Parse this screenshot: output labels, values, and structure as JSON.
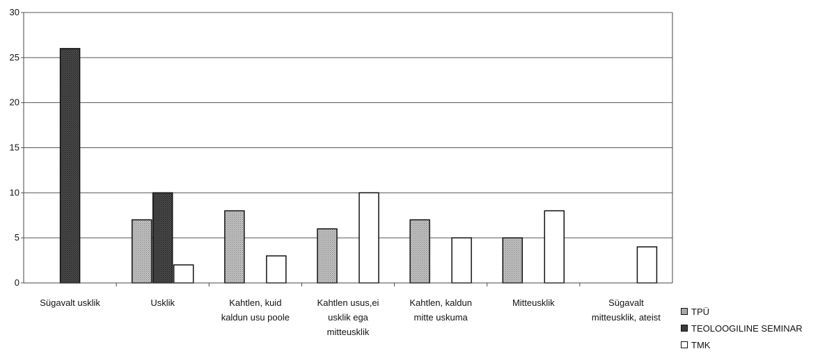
{
  "chart_data": {
    "type": "bar",
    "title": "",
    "xlabel": "",
    "ylabel": "",
    "ylim": [
      0,
      30
    ],
    "yticks": [
      0,
      5,
      10,
      15,
      20,
      25,
      30
    ],
    "grid": true,
    "legend_position": "bottom-right",
    "categories": [
      [
        "Sügavalt usklik"
      ],
      [
        "Usklik"
      ],
      [
        "Kahtlen, kuid",
        "kaldun usu poole"
      ],
      [
        "Kahtlen usus,ei",
        "usklik ega",
        "mitteusklik"
      ],
      [
        "Kahtlen, kaldun",
        "mitte uskuma"
      ],
      [
        "Mitteusklik"
      ],
      [
        "Sügavalt",
        "mitteusklik, ateist"
      ]
    ],
    "series": [
      {
        "name": "TPÜ",
        "color": "#a8a8a8",
        "values": [
          0,
          7,
          8,
          6,
          7,
          5,
          0
        ]
      },
      {
        "name": "TEOLOOGILINE SEMINAR",
        "color": "#3a3a3a",
        "values": [
          26,
          10,
          0,
          0,
          0,
          0,
          0
        ]
      },
      {
        "name": "TMK",
        "color": "#ffffff",
        "values": [
          0,
          2,
          3,
          10,
          5,
          8,
          4
        ]
      }
    ]
  }
}
